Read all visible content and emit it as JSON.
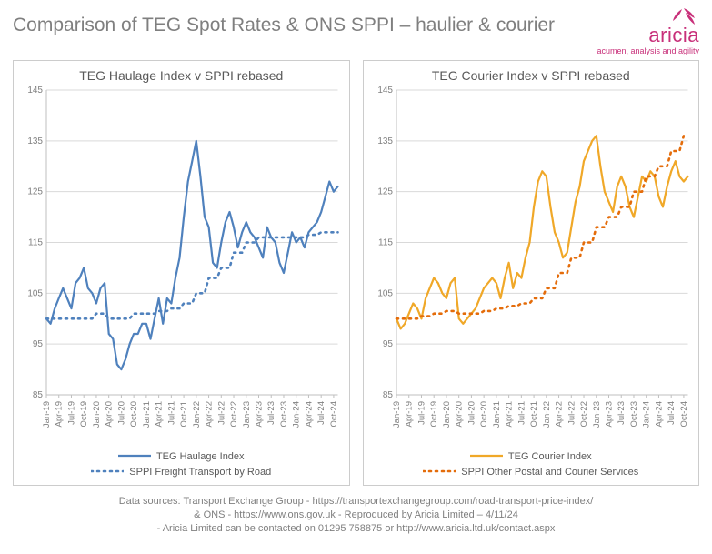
{
  "title": "Comparison of TEG Spot Rates & ONS SPPI – haulier & courier",
  "brand": {
    "name": "aricia",
    "tagline": "acumen, analysis and agility",
    "color": "#c8307a"
  },
  "x_labels": [
    "Jan-19",
    "Apr-19",
    "Jul-19",
    "Oct-19",
    "Jan-20",
    "Apr-20",
    "Jul-20",
    "Oct-20",
    "Jan-21",
    "Apr-21",
    "Jul-21",
    "Oct-21",
    "Jan-22",
    "Apr-22",
    "Jul-22",
    "Oct-22",
    "Jan-23",
    "Apr-23",
    "Jul-23",
    "Oct-23",
    "Jan-24",
    "Apr-24",
    "Jul-24",
    "Oct-24"
  ],
  "y_axis": {
    "min": 85,
    "max": 145,
    "ticks": [
      85,
      95,
      105,
      115,
      125,
      135,
      145
    ],
    "grid_color": "#d9d9d9",
    "axis_color": "#bfbfbf",
    "label_color": "#808080",
    "label_fontsize": 10
  },
  "charts": [
    {
      "title": "TEG Haulage Index v SPPI rebased",
      "series": [
        {
          "name": "TEG Haulage Index",
          "legend": "TEG Haulage Index",
          "color": "#4f81bd",
          "width": 2.2,
          "dash": "",
          "data": [
            100,
            99,
            102,
            104,
            106,
            104,
            102,
            107,
            108,
            110,
            106,
            105,
            103,
            106,
            107,
            97,
            96,
            91,
            90,
            92,
            95,
            97,
            97,
            99,
            99,
            96,
            100,
            104,
            99,
            104,
            103,
            108,
            112,
            120,
            127,
            131,
            135,
            128,
            120,
            118,
            111,
            110,
            115,
            119,
            121,
            118,
            114,
            117,
            119,
            117,
            116,
            114,
            112,
            118,
            116,
            115,
            111,
            109,
            113,
            117,
            115,
            116,
            114,
            117,
            118,
            119,
            121,
            124,
            127,
            125,
            126
          ]
        },
        {
          "name": "SPPI Freight Transport by Road",
          "legend": "SPPI Freight Transport by Road",
          "color": "#4f81bd",
          "width": 2.6,
          "dash": "2 5",
          "data": [
            100,
            100,
            100,
            100,
            100,
            100,
            100,
            100,
            100,
            100,
            100,
            100,
            101,
            101,
            101,
            100,
            100,
            100,
            100,
            100,
            100,
            101,
            101,
            101,
            101,
            101,
            101,
            101.5,
            101.5,
            101.5,
            102,
            102,
            102,
            103,
            103,
            103,
            105,
            105,
            105,
            108,
            108,
            108,
            110,
            110,
            110,
            113,
            113,
            113,
            115,
            115,
            115,
            116,
            116,
            116,
            116,
            116,
            116,
            116,
            116,
            116,
            116,
            116,
            116,
            116.5,
            116.5,
            116.5,
            117,
            117,
            117,
            117,
            117
          ]
        }
      ]
    },
    {
      "title": "TEG Courier Index v SPPI rebased",
      "series": [
        {
          "name": "TEG Courier Index",
          "legend": "TEG Courier Index",
          "color": "#f0a828",
          "width": 2.2,
          "dash": "",
          "data": [
            100,
            98,
            99,
            101,
            103,
            102,
            100,
            104,
            106,
            108,
            107,
            105,
            104,
            107,
            108,
            100,
            99,
            100,
            101,
            102,
            104,
            106,
            107,
            108,
            107,
            104,
            108,
            111,
            106,
            109,
            108,
            112,
            115,
            122,
            127,
            129,
            128,
            122,
            117,
            115,
            112,
            113,
            118,
            123,
            126,
            131,
            133,
            135,
            136,
            130,
            125,
            123,
            121,
            126,
            128,
            126,
            122,
            120,
            124,
            128,
            127,
            129,
            128,
            124,
            122,
            126,
            129,
            131,
            128,
            127,
            128
          ]
        },
        {
          "name": "SPPI Other Postal and Courier Services",
          "legend": "SPPI Other Postal and Courier Services",
          "color": "#e46c0a",
          "width": 2.6,
          "dash": "2 5",
          "data": [
            100,
            100,
            100,
            100,
            100,
            100,
            100.5,
            100.5,
            100.5,
            101,
            101,
            101,
            101.5,
            101.5,
            101.5,
            101,
            101,
            101,
            101,
            101,
            101,
            101.5,
            101.5,
            101.5,
            102,
            102,
            102,
            102.5,
            102.5,
            102.5,
            103,
            103,
            103,
            104,
            104,
            104,
            106,
            106,
            106,
            109,
            109,
            109,
            112,
            112,
            112,
            115,
            115,
            115,
            118,
            118,
            118,
            120,
            120,
            120,
            122,
            122,
            122,
            125,
            125,
            125,
            128,
            128,
            128,
            130,
            130,
            130,
            133,
            133,
            133,
            136,
            136
          ]
        }
      ]
    }
  ],
  "footer": {
    "line1": "Data sources: Transport Exchange Group - https://transportexchangegroup.com/road-transport-price-index/",
    "line2": "& ONS - https://www.ons.gov.uk - Reproduced by Aricia Limited – 4/11/24",
    "line3": "- Aricia Limited can be contacted on 01295 758875 or http://www.aricia.ltd.uk/contact.aspx"
  }
}
